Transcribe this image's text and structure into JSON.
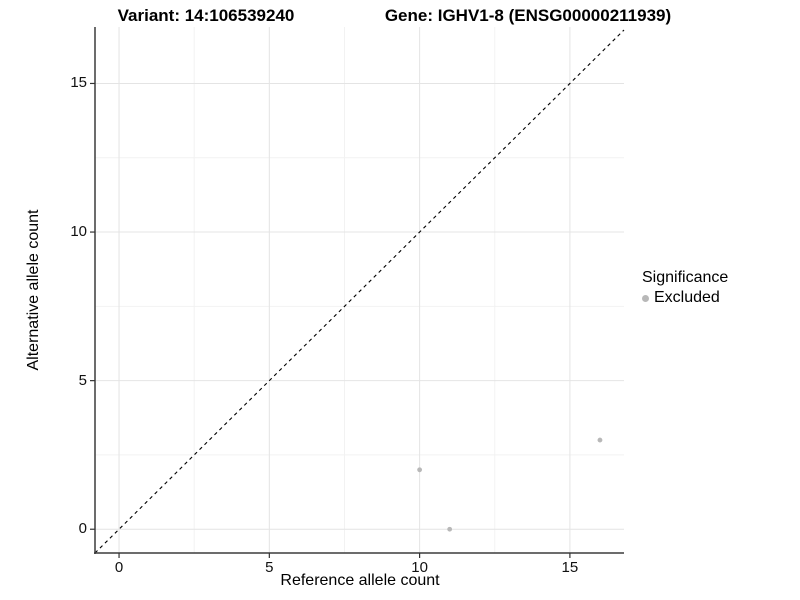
{
  "titles": {
    "variant": "Variant: 14:106539240",
    "gene": "Gene: IGHV1-8 (ENSG00000211939)"
  },
  "legend": {
    "title": "Significance",
    "items": [
      {
        "label": "Excluded",
        "color": "#b8b8b8"
      }
    ]
  },
  "colors": {
    "grid_major": "#e4e4e4",
    "grid_minor": "#f2f2f2",
    "axis_line": "#3c3c3c",
    "tick_mark": "#333333",
    "identity_line": "#000000",
    "point": "#b8b8b8",
    "text": "#000000"
  },
  "chart_data": {
    "type": "scatter",
    "title": "Variant: 14:106539240 / Gene: IGHV1-8 (ENSG00000211939)",
    "xlabel": "Reference allele count",
    "ylabel": "Alternative allele count",
    "xlim": [
      -0.8,
      16.8
    ],
    "ylim": [
      -0.8,
      16.9
    ],
    "x_ticks": [
      0,
      5,
      10,
      15
    ],
    "y_ticks": [
      0,
      5,
      10,
      15
    ],
    "x_minor_ticks": [
      2.5,
      7.5,
      12.5
    ],
    "y_minor_ticks": [
      2.5,
      7.5,
      12.5
    ],
    "grid": true,
    "legend_position": "right",
    "reference_line": {
      "type": "identity",
      "equation": "y = x",
      "style": "dashed",
      "color": "#000000"
    },
    "series": [
      {
        "name": "Excluded",
        "color": "#b8b8b8",
        "points": [
          [
            10,
            2
          ],
          [
            11,
            0
          ],
          [
            16,
            3
          ]
        ]
      }
    ]
  }
}
